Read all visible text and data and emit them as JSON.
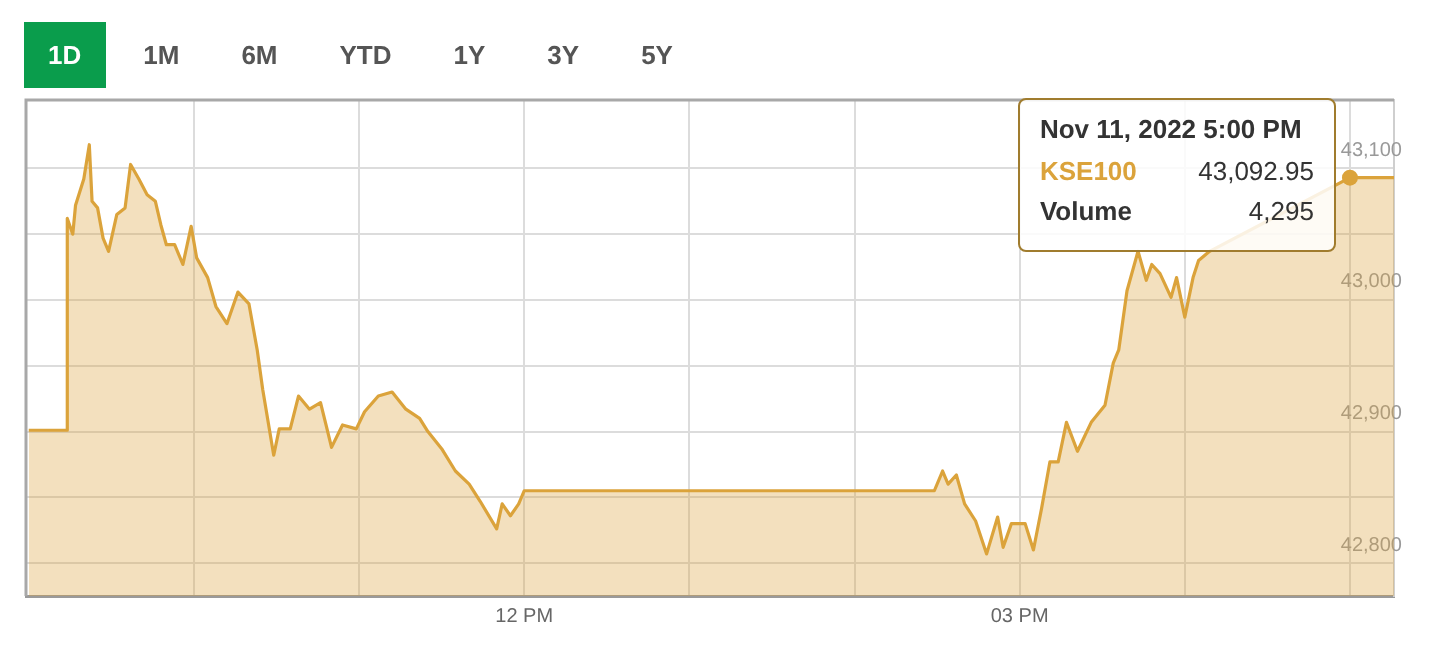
{
  "chart_data": {
    "type": "area",
    "x": [
      "2022-11-11T09:00",
      "2022-11-11T09:14",
      "2022-11-11T09:14",
      "2022-11-11T09:16",
      "2022-11-11T09:17",
      "2022-11-11T09:20",
      "2022-11-11T09:22",
      "2022-11-11T09:23",
      "2022-11-11T09:25",
      "2022-11-11T09:27",
      "2022-11-11T09:29",
      "2022-11-11T09:32",
      "2022-11-11T09:35",
      "2022-11-11T09:37",
      "2022-11-11T09:40",
      "2022-11-11T09:43",
      "2022-11-11T09:46",
      "2022-11-11T09:48",
      "2022-11-11T09:50",
      "2022-11-11T09:53",
      "2022-11-11T09:56",
      "2022-11-11T09:59",
      "2022-11-11T10:01",
      "2022-11-11T10:05",
      "2022-11-11T10:08",
      "2022-11-11T10:12",
      "2022-11-11T10:16",
      "2022-11-11T10:20",
      "2022-11-11T10:23",
      "2022-11-11T10:25",
      "2022-11-11T10:29",
      "2022-11-11T10:31",
      "2022-11-11T10:35",
      "2022-11-11T10:38",
      "2022-11-11T10:42",
      "2022-11-11T10:46",
      "2022-11-11T10:48",
      "2022-11-11T10:50",
      "2022-11-11T10:54",
      "2022-11-11T10:59",
      "2022-11-11T11:02",
      "2022-11-11T11:07",
      "2022-11-11T11:12",
      "2022-11-11T11:17",
      "2022-11-11T11:22",
      "2022-11-11T11:25",
      "2022-11-11T11:30",
      "2022-11-11T11:35",
      "2022-11-11T11:40",
      "2022-11-11T11:44",
      "2022-11-11T11:50",
      "2022-11-11T11:52",
      "2022-11-11T11:55",
      "2022-11-11T11:58",
      "2022-11-11T12:00",
      "2022-11-11T14:29",
      "2022-11-11T14:32",
      "2022-11-11T14:34",
      "2022-11-11T14:37",
      "2022-11-11T14:40",
      "2022-11-11T14:44",
      "2022-11-11T14:48",
      "2022-11-11T14:52",
      "2022-11-11T14:54",
      "2022-11-11T14:57",
      "2022-11-11T15:02",
      "2022-11-11T15:05",
      "2022-11-11T15:08",
      "2022-11-11T15:11",
      "2022-11-11T15:14",
      "2022-11-11T15:17",
      "2022-11-11T15:21",
      "2022-11-11T15:26",
      "2022-11-11T15:31",
      "2022-11-11T15:34",
      "2022-11-11T15:36",
      "2022-11-11T15:39",
      "2022-11-11T15:43",
      "2022-11-11T15:46",
      "2022-11-11T15:48",
      "2022-11-11T15:51",
      "2022-11-11T15:55",
      "2022-11-11T15:57",
      "2022-11-11T16:00",
      "2022-11-11T16:03",
      "2022-11-11T16:05",
      "2022-11-11T16:09",
      "2022-11-11T16:14",
      "2022-11-11T16:17",
      "2022-11-11T16:20",
      "2022-11-11T16:22",
      "2022-11-11T16:26",
      "2022-11-11T16:28",
      "2022-11-11T16:37",
      "2022-11-11T17:00",
      "2022-11-11T17:16"
    ],
    "series": [
      {
        "name": "KSE100",
        "color": "#dba33b",
        "values": [
          42901,
          42901,
          43062,
          43050,
          43072,
          43092,
          43118,
          43075,
          43070,
          43047,
          43037,
          43065,
          43070,
          43103,
          43092,
          43080,
          43075,
          43057,
          43042,
          43042,
          43027,
          43056,
          43032,
          43017,
          42995,
          42982,
          43006,
          42997,
          42962,
          42932,
          42882,
          42902,
          42902,
          42927,
          42917,
          42922,
          42905,
          42888,
          42905,
          42902,
          42915,
          42927,
          42930,
          42917,
          42910,
          42900,
          42887,
          42870,
          42860,
          42847,
          42826,
          42845,
          42836,
          42845,
          42855,
          42855,
          42870,
          42860,
          42867,
          42845,
          42832,
          42807,
          42835,
          42812,
          42830,
          42830,
          42810,
          42842,
          42877,
          42877,
          42907,
          42885,
          42907,
          42920,
          42952,
          42962,
          43007,
          43037,
          43015,
          43027,
          43020,
          43002,
          43017,
          42987,
          43017,
          43030,
          43037,
          null,
          null,
          null,
          null,
          null,
          null,
          null,
          43092.95,
          43092.95
        ],
        "value_labels": [
          null,
          null,
          null,
          null,
          null,
          null,
          null,
          null,
          null,
          null,
          null,
          null,
          null,
          null,
          null,
          null,
          null,
          null,
          null,
          null,
          null,
          null,
          null,
          null,
          null,
          null,
          null,
          null,
          null,
          null,
          null,
          null,
          null,
          null,
          null,
          null,
          null,
          null,
          null,
          null,
          null,
          null,
          null,
          null,
          null,
          null,
          null,
          null,
          null,
          null,
          null,
          null,
          null,
          null,
          null,
          null,
          null,
          null,
          null,
          null,
          null,
          null,
          null,
          null,
          null,
          null,
          null,
          null,
          null,
          null,
          null,
          null,
          null,
          null,
          null,
          null,
          null,
          null,
          null,
          null,
          null,
          null,
          null,
          null,
          null,
          null,
          null,
          null,
          null,
          null,
          null,
          null,
          null,
          null,
          "43,092.95",
          null
        ]
      }
    ],
    "xlim": [
      "2022-11-11T08:59",
      "2022-11-11T17:16"
    ],
    "xticks": [
      {
        "value": "2022-11-11T10:00",
        "label": null
      },
      {
        "value": "2022-11-11T11:00",
        "label": null
      },
      {
        "value": "2022-11-11T12:00",
        "label": "12 PM"
      },
      {
        "value": "2022-11-11T13:00",
        "label": null
      },
      {
        "value": "2022-11-11T14:00",
        "label": null
      },
      {
        "value": "2022-11-11T15:00",
        "label": "03 PM"
      },
      {
        "value": "2022-11-11T16:00",
        "label": null
      },
      {
        "value": "2022-11-11T17:00",
        "label": null
      }
    ],
    "ylim": [
      42775,
      43152
    ],
    "yticks": [
      {
        "value": 42800,
        "label": "42,800"
      },
      {
        "value": 42850,
        "label": null
      },
      {
        "value": 42900,
        "label": "42,900"
      },
      {
        "value": 42950,
        "label": null
      },
      {
        "value": 43000,
        "label": "43,000"
      },
      {
        "value": 43050,
        "label": null
      },
      {
        "value": 43100,
        "label": "43,100"
      }
    ],
    "grid": true,
    "legend": false,
    "marker": "none",
    "line_style": "solid",
    "annotations": [
      "1D",
      "1M",
      "6M",
      "YTD",
      "1Y",
      "3Y",
      "5Y",
      {
        "text": "Nov 11, 2022 5:00 PM",
        "x": "2022-11-11T17:00",
        "y": 43092.95
      },
      "Volume",
      "4,295"
    ]
  }
}
